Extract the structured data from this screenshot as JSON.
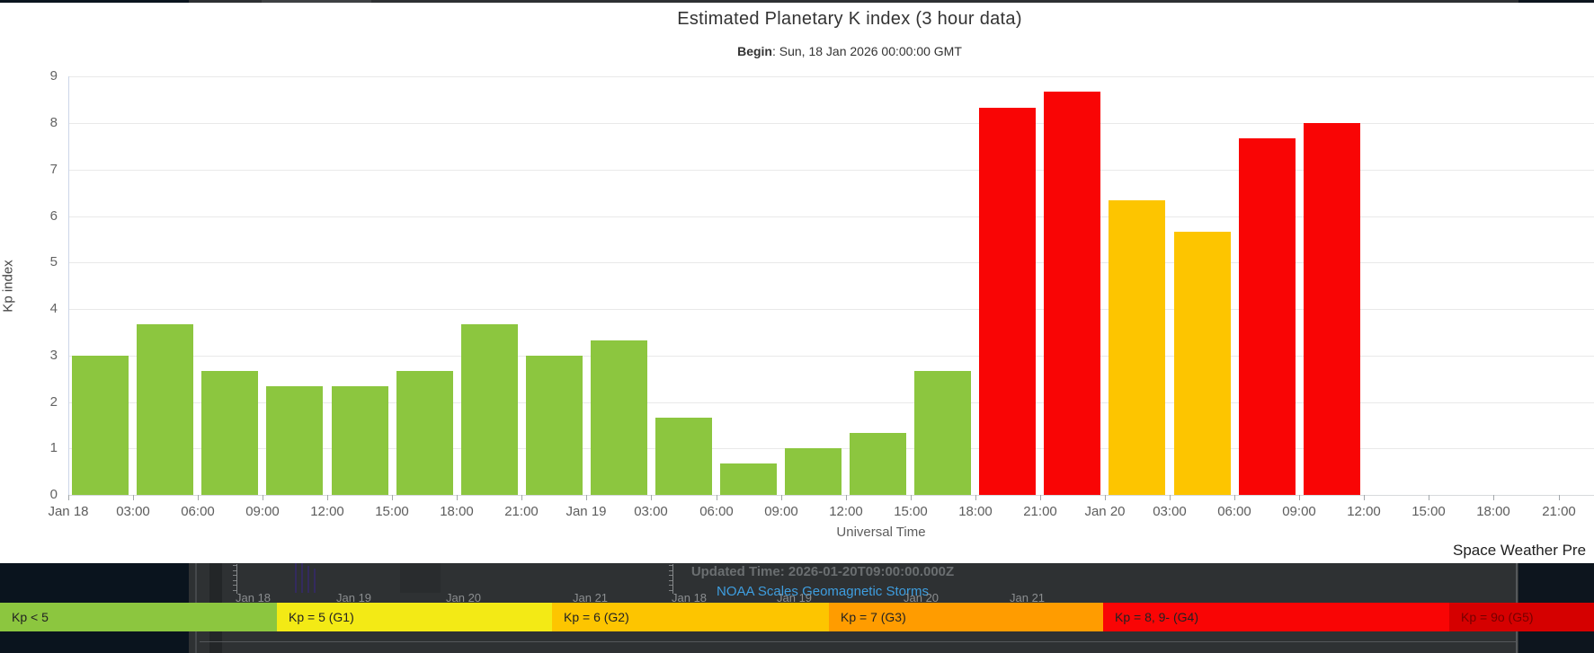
{
  "modal": {
    "title": "Estimated Planetary K index (3 hour data)",
    "begin_label": "Begin",
    "begin_rest": ": Sun, 18 Jan 2026 00:00:00 GMT",
    "watermark": "Space Weather Pre"
  },
  "chart_data": {
    "type": "bar",
    "title": "Estimated Planetary K index (3 hour data)",
    "begin": "Sun, 18 Jan 2026 00:00:00 GMT",
    "xlabel": "Universal Time",
    "ylabel": "Kp index",
    "ylim": [
      0,
      9
    ],
    "grid": true,
    "ytick_labels": [
      "0",
      "1",
      "2",
      "3",
      "4",
      "5",
      "6",
      "7",
      "8",
      "9"
    ],
    "x_tick_labels": [
      "Jan 18",
      "03:00",
      "06:00",
      "09:00",
      "12:00",
      "15:00",
      "18:00",
      "21:00",
      "Jan 19",
      "03:00",
      "06:00",
      "09:00",
      "12:00",
      "15:00",
      "18:00",
      "21:00",
      "Jan 20",
      "03:00",
      "06:00",
      "09:00",
      "12:00",
      "15:00",
      "18:00",
      "21:00"
    ],
    "categories": [
      "Jan 18 00:00",
      "Jan 18 03:00",
      "Jan 18 06:00",
      "Jan 18 09:00",
      "Jan 18 12:00",
      "Jan 18 15:00",
      "Jan 18 18:00",
      "Jan 18 21:00",
      "Jan 19 00:00",
      "Jan 19 03:00",
      "Jan 19 06:00",
      "Jan 19 09:00",
      "Jan 19 12:00",
      "Jan 19 15:00",
      "Jan 19 18:00",
      "Jan 19 21:00",
      "Jan 20 00:00",
      "Jan 20 03:00",
      "Jan 20 06:00",
      "Jan 20 09:00"
    ],
    "values": [
      3,
      3.67,
      2.67,
      2.33,
      2.33,
      2.67,
      3.67,
      3,
      3.33,
      1.67,
      0.67,
      1,
      1.33,
      2.67,
      8.33,
      8.67,
      6.33,
      5.67,
      7.67,
      8
    ],
    "bar_colors": [
      "#8CC63F",
      "#8CC63F",
      "#8CC63F",
      "#8CC63F",
      "#8CC63F",
      "#8CC63F",
      "#8CC63F",
      "#8CC63F",
      "#8CC63F",
      "#8CC63F",
      "#8CC63F",
      "#8CC63F",
      "#8CC63F",
      "#8CC63F",
      "#F90505",
      "#F90505",
      "#FDC500",
      "#FDC500",
      "#F90505",
      "#F90505"
    ],
    "color_key": {
      "kp_lt_5": "#8CC63F",
      "kp_6_range": "#FDC500",
      "kp_8_range": "#F90505"
    }
  },
  "legend": {
    "items": [
      {
        "label": "Kp < 5",
        "color": "#8CC63F"
      },
      {
        "label": "Kp = 5 (G1)",
        "color": "#F3EA15"
      },
      {
        "label": "Kp = 6 (G2)",
        "color": "#FDC500"
      },
      {
        "label": "Kp = 7 (G3)",
        "color": "#FF9C00"
      },
      {
        "label": "Kp = 8, 9- (G4)",
        "color": "#F90505"
      },
      {
        "label": "Kp = 9o (G5)",
        "color": "#D50000"
      }
    ]
  },
  "background": {
    "updated_time": "Updated Time: 2026-01-20T09:00:00.000Z",
    "noaa_link": "NOAA Scales Geomagnetic Storms",
    "thumb_axis_labels": [
      "Jan 18",
      "Jan 19",
      "Jan 20",
      "Jan 21"
    ]
  }
}
